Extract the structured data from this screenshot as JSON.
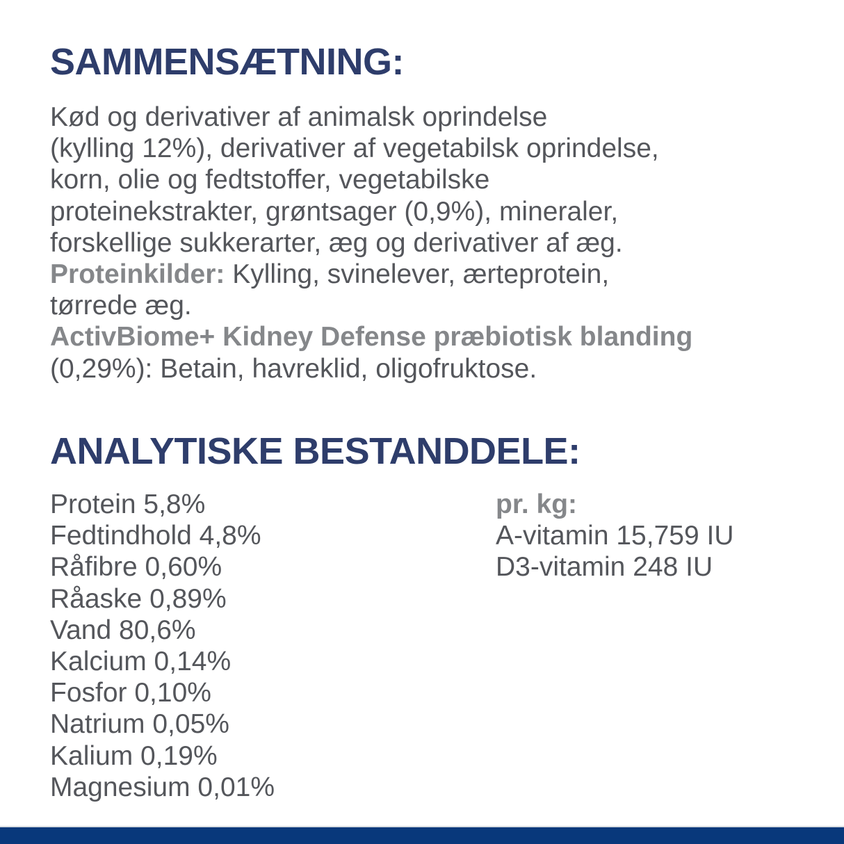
{
  "colors": {
    "heading_navy": "#2e3d6b",
    "body_gray": "#54565b",
    "bold_gray": "#85878a",
    "footer_blue": "#08387b",
    "background": "#ffffff"
  },
  "composition": {
    "heading": "SAMMENSÆTNING:",
    "lines": [
      "Kød og derivativer af animalsk oprindelse",
      "(kylling 12%), derivativer af vegetabilsk oprindelse,",
      "korn, olie og fedtstoffer, vegetabilske",
      "proteinekstrakter, grøntsager (0,9%), mineraler,",
      "forskellige sukkerarter, æg og derivativer af æg."
    ],
    "protein_sources_label": "Proteinkilder:",
    "protein_sources_text": " Kylling, svinelever, ærteprotein,",
    "protein_sources_text2": "tørrede æg.",
    "activbiome_label": "ActivBiome+ Kidney Defense præbiotisk blanding",
    "activbiome_text": "(0,29%): Betain, havreklid, oligofruktose."
  },
  "analytical": {
    "heading": "ANALYTISKE BESTANDDELE:",
    "left_column": [
      "Protein 5,8%",
      "Fedtindhold 4,8%",
      "Råfibre 0,60%",
      "Råaske 0,89%",
      "Vand 80,6%",
      "Kalcium 0,14%",
      "Fosfor 0,10%",
      "Natrium 0,05%",
      "Kalium 0,19%",
      "Magnesium 0,01%"
    ],
    "right_column_label": "pr. kg:",
    "right_column": [
      "A-vitamin 15,759 IU",
      "D3-vitamin 248 IU"
    ]
  }
}
